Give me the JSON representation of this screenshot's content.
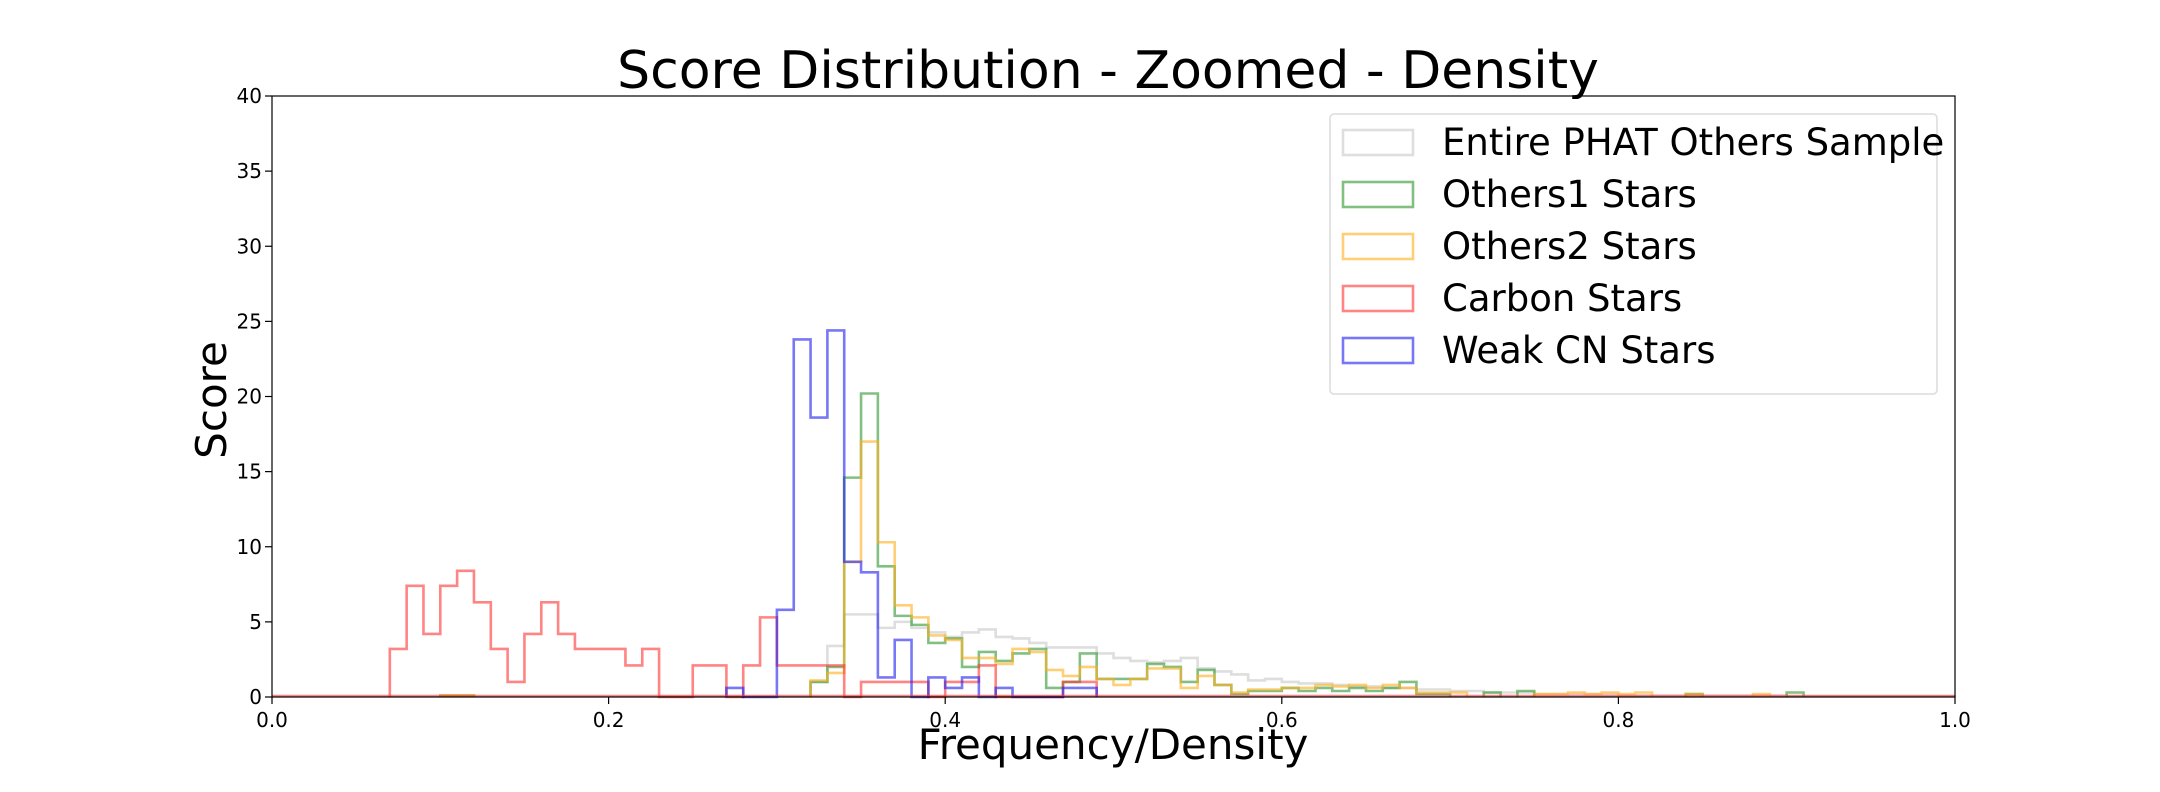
{
  "chart_data": {
    "type": "line",
    "title": "Score Distribution - Zoomed - Density",
    "xlabel": "Frequency/Density",
    "ylabel": "Score",
    "xlim": [
      0.0,
      1.0
    ],
    "ylim": [
      0,
      40
    ],
    "xticks": [
      0.0,
      0.2,
      0.4,
      0.6,
      0.8,
      1.0
    ],
    "xtick_labels": [
      "0.0",
      "0.2",
      "0.4",
      "0.6",
      "0.8",
      "1.0"
    ],
    "yticks": [
      0,
      5,
      10,
      15,
      20,
      25,
      30,
      35,
      40
    ],
    "ytick_labels": [
      "0",
      "5",
      "10",
      "15",
      "20",
      "25",
      "30",
      "35",
      "40"
    ],
    "grid": false,
    "legend_position": "top-right",
    "histtype": "step",
    "bin_width": 0.01,
    "series": [
      {
        "name": "Entire PHAT Others Sample",
        "color": "#c8c8c8",
        "bins": [
          [
            0.32,
            0.33,
            1.0
          ],
          [
            0.33,
            0.34,
            3.4
          ],
          [
            0.34,
            0.35,
            5.5
          ],
          [
            0.35,
            0.36,
            5.5
          ],
          [
            0.36,
            0.37,
            4.6
          ],
          [
            0.37,
            0.38,
            5.0
          ],
          [
            0.38,
            0.39,
            4.6
          ],
          [
            0.39,
            0.4,
            4.3
          ],
          [
            0.4,
            0.41,
            4.0
          ],
          [
            0.41,
            0.42,
            4.3
          ],
          [
            0.42,
            0.43,
            4.5
          ],
          [
            0.43,
            0.44,
            4.0
          ],
          [
            0.44,
            0.45,
            3.9
          ],
          [
            0.45,
            0.46,
            3.6
          ],
          [
            0.46,
            0.47,
            3.3
          ],
          [
            0.47,
            0.48,
            3.3
          ],
          [
            0.48,
            0.49,
            3.3
          ],
          [
            0.49,
            0.5,
            2.9
          ],
          [
            0.5,
            0.51,
            2.6
          ],
          [
            0.51,
            0.52,
            2.4
          ],
          [
            0.52,
            0.53,
            2.3
          ],
          [
            0.53,
            0.54,
            2.4
          ],
          [
            0.54,
            0.55,
            2.6
          ],
          [
            0.55,
            0.56,
            1.9
          ],
          [
            0.56,
            0.57,
            1.7
          ],
          [
            0.57,
            0.58,
            1.5
          ],
          [
            0.58,
            0.59,
            1.1
          ],
          [
            0.59,
            0.6,
            1.2
          ],
          [
            0.6,
            0.61,
            1.0
          ],
          [
            0.61,
            0.62,
            0.9
          ],
          [
            0.62,
            0.63,
            0.9
          ],
          [
            0.63,
            0.64,
            0.8
          ],
          [
            0.64,
            0.65,
            0.7
          ],
          [
            0.65,
            0.66,
            0.7
          ],
          [
            0.66,
            0.67,
            0.6
          ],
          [
            0.67,
            0.68,
            0.6
          ],
          [
            0.68,
            0.69,
            0.5
          ],
          [
            0.69,
            0.7,
            0.5
          ],
          [
            0.7,
            0.71,
            0.4
          ],
          [
            0.71,
            0.72,
            0.4
          ],
          [
            0.72,
            0.73,
            0.3
          ],
          [
            0.73,
            0.74,
            0.3
          ],
          [
            0.74,
            0.75,
            0.3
          ],
          [
            0.75,
            0.76,
            0.2
          ],
          [
            0.76,
            0.77,
            0.2
          ],
          [
            0.77,
            0.78,
            0.2
          ],
          [
            0.78,
            0.79,
            0.2
          ],
          [
            0.79,
            0.8,
            0.2
          ],
          [
            0.8,
            0.82,
            0.1
          ],
          [
            0.82,
            0.85,
            0.1
          ],
          [
            0.85,
            0.9,
            0.1
          ],
          [
            0.9,
            1.0,
            0.05
          ]
        ]
      },
      {
        "name": "Others1 Stars",
        "color": "#2e962e",
        "bins": [
          [
            0.1,
            0.12,
            0.1
          ],
          [
            0.32,
            0.33,
            1.0
          ],
          [
            0.33,
            0.34,
            2.0
          ],
          [
            0.34,
            0.35,
            14.6
          ],
          [
            0.35,
            0.36,
            20.2
          ],
          [
            0.36,
            0.37,
            8.7
          ],
          [
            0.37,
            0.38,
            5.4
          ],
          [
            0.38,
            0.39,
            4.8
          ],
          [
            0.39,
            0.4,
            3.6
          ],
          [
            0.4,
            0.41,
            3.9
          ],
          [
            0.41,
            0.42,
            2.0
          ],
          [
            0.42,
            0.43,
            3.0
          ],
          [
            0.43,
            0.44,
            2.4
          ],
          [
            0.44,
            0.45,
            2.9
          ],
          [
            0.45,
            0.46,
            3.2
          ],
          [
            0.46,
            0.47,
            0.6
          ],
          [
            0.47,
            0.48,
            1.0
          ],
          [
            0.48,
            0.49,
            2.9
          ],
          [
            0.49,
            0.5,
            1.2
          ],
          [
            0.5,
            0.51,
            1.2
          ],
          [
            0.51,
            0.52,
            1.2
          ],
          [
            0.52,
            0.53,
            2.2
          ],
          [
            0.53,
            0.54,
            2.0
          ],
          [
            0.54,
            0.55,
            1.0
          ],
          [
            0.55,
            0.56,
            1.8
          ],
          [
            0.56,
            0.57,
            0.8
          ],
          [
            0.57,
            0.58,
            0.2
          ],
          [
            0.58,
            0.59,
            0.4
          ],
          [
            0.59,
            0.6,
            0.4
          ],
          [
            0.6,
            0.61,
            0.6
          ],
          [
            0.61,
            0.62,
            0.4
          ],
          [
            0.62,
            0.63,
            0.6
          ],
          [
            0.63,
            0.64,
            0.4
          ],
          [
            0.64,
            0.65,
            0.6
          ],
          [
            0.65,
            0.66,
            0.4
          ],
          [
            0.66,
            0.67,
            0.6
          ],
          [
            0.67,
            0.68,
            1.0
          ],
          [
            0.68,
            0.69,
            0.2
          ],
          [
            0.69,
            0.7,
            0.2
          ],
          [
            0.72,
            0.73,
            0.3
          ],
          [
            0.74,
            0.75,
            0.4
          ],
          [
            0.84,
            0.85,
            0.2
          ],
          [
            0.9,
            0.91,
            0.3
          ]
        ]
      },
      {
        "name": "Others2 Stars",
        "color": "#ffaf1e",
        "bins": [
          [
            0.1,
            0.12,
            0.1
          ],
          [
            0.32,
            0.33,
            1.1
          ],
          [
            0.33,
            0.34,
            1.6
          ],
          [
            0.34,
            0.35,
            9.0
          ],
          [
            0.35,
            0.36,
            17.0
          ],
          [
            0.36,
            0.37,
            10.3
          ],
          [
            0.37,
            0.38,
            6.1
          ],
          [
            0.38,
            0.39,
            5.3
          ],
          [
            0.39,
            0.4,
            4.1
          ],
          [
            0.4,
            0.41,
            3.8
          ],
          [
            0.41,
            0.42,
            2.6
          ],
          [
            0.42,
            0.43,
            2.6
          ],
          [
            0.43,
            0.44,
            2.2
          ],
          [
            0.44,
            0.45,
            3.2
          ],
          [
            0.45,
            0.46,
            3.0
          ],
          [
            0.46,
            0.47,
            1.8
          ],
          [
            0.47,
            0.48,
            1.4
          ],
          [
            0.48,
            0.49,
            2.0
          ],
          [
            0.49,
            0.5,
            1.2
          ],
          [
            0.5,
            0.51,
            0.8
          ],
          [
            0.51,
            0.52,
            1.2
          ],
          [
            0.52,
            0.53,
            1.9
          ],
          [
            0.53,
            0.54,
            1.9
          ],
          [
            0.54,
            0.55,
            0.6
          ],
          [
            0.55,
            0.56,
            1.4
          ],
          [
            0.56,
            0.57,
            0.8
          ],
          [
            0.57,
            0.58,
            0.3
          ],
          [
            0.58,
            0.59,
            0.5
          ],
          [
            0.59,
            0.6,
            0.5
          ],
          [
            0.6,
            0.61,
            0.6
          ],
          [
            0.61,
            0.62,
            0.6
          ],
          [
            0.62,
            0.63,
            0.8
          ],
          [
            0.63,
            0.64,
            0.7
          ],
          [
            0.64,
            0.65,
            0.8
          ],
          [
            0.65,
            0.66,
            0.6
          ],
          [
            0.66,
            0.67,
            0.8
          ],
          [
            0.67,
            0.68,
            0.6
          ],
          [
            0.68,
            0.69,
            0.3
          ],
          [
            0.69,
            0.7,
            0.3
          ],
          [
            0.7,
            0.71,
            0.3
          ],
          [
            0.75,
            0.76,
            0.2
          ],
          [
            0.76,
            0.77,
            0.2
          ],
          [
            0.77,
            0.78,
            0.3
          ],
          [
            0.78,
            0.79,
            0.2
          ],
          [
            0.79,
            0.8,
            0.3
          ],
          [
            0.8,
            0.81,
            0.2
          ],
          [
            0.81,
            0.82,
            0.3
          ],
          [
            0.84,
            0.85,
            0.2
          ],
          [
            0.88,
            0.89,
            0.2
          ]
        ]
      },
      {
        "name": "Carbon Stars",
        "color": "#ff3232",
        "bins": [
          [
            0.07,
            0.08,
            3.2
          ],
          [
            0.08,
            0.09,
            7.4
          ],
          [
            0.09,
            0.1,
            4.2
          ],
          [
            0.1,
            0.11,
            7.4
          ],
          [
            0.11,
            0.12,
            8.4
          ],
          [
            0.12,
            0.13,
            6.3
          ],
          [
            0.13,
            0.14,
            3.2
          ],
          [
            0.14,
            0.15,
            1.0
          ],
          [
            0.15,
            0.16,
            4.2
          ],
          [
            0.16,
            0.17,
            6.3
          ],
          [
            0.17,
            0.18,
            4.2
          ],
          [
            0.18,
            0.19,
            3.2
          ],
          [
            0.19,
            0.2,
            3.2
          ],
          [
            0.2,
            0.21,
            3.2
          ],
          [
            0.21,
            0.22,
            2.1
          ],
          [
            0.22,
            0.23,
            3.2
          ],
          [
            0.23,
            0.25,
            0.0
          ],
          [
            0.25,
            0.26,
            2.1
          ],
          [
            0.26,
            0.27,
            2.1
          ],
          [
            0.27,
            0.28,
            0.0
          ],
          [
            0.28,
            0.29,
            2.1
          ],
          [
            0.29,
            0.3,
            5.3
          ],
          [
            0.3,
            0.31,
            2.1
          ],
          [
            0.31,
            0.32,
            2.1
          ],
          [
            0.32,
            0.33,
            2.1
          ],
          [
            0.33,
            0.34,
            2.1
          ],
          [
            0.34,
            0.35,
            0.0
          ],
          [
            0.35,
            0.36,
            1.0
          ],
          [
            0.36,
            0.37,
            1.0
          ],
          [
            0.37,
            0.38,
            1.0
          ],
          [
            0.38,
            0.39,
            1.0
          ],
          [
            0.39,
            0.4,
            0.0
          ],
          [
            0.4,
            0.41,
            1.0
          ],
          [
            0.41,
            0.42,
            1.0
          ],
          [
            0.42,
            0.43,
            2.1
          ],
          [
            0.43,
            0.44,
            0.0
          ],
          [
            0.44,
            0.47,
            0.0
          ],
          [
            0.47,
            0.48,
            1.0
          ],
          [
            0.48,
            0.49,
            1.0
          ]
        ]
      },
      {
        "name": "Weak CN Stars",
        "color": "#1e1ef0",
        "bins": [
          [
            0.27,
            0.28,
            0.6
          ],
          [
            0.28,
            0.29,
            0.0
          ],
          [
            0.29,
            0.3,
            0.0
          ],
          [
            0.3,
            0.31,
            5.8
          ],
          [
            0.31,
            0.32,
            23.8
          ],
          [
            0.32,
            0.33,
            18.6
          ],
          [
            0.33,
            0.34,
            24.4
          ],
          [
            0.34,
            0.35,
            9.0
          ],
          [
            0.35,
            0.36,
            8.3
          ],
          [
            0.36,
            0.37,
            1.3
          ],
          [
            0.37,
            0.38,
            3.8
          ],
          [
            0.38,
            0.39,
            0.0
          ],
          [
            0.39,
            0.4,
            1.3
          ],
          [
            0.4,
            0.41,
            0.6
          ],
          [
            0.41,
            0.42,
            1.3
          ],
          [
            0.42,
            0.43,
            0.0
          ],
          [
            0.43,
            0.44,
            0.6
          ],
          [
            0.44,
            0.47,
            0.0
          ],
          [
            0.47,
            0.48,
            0.6
          ],
          [
            0.48,
            0.49,
            0.6
          ]
        ]
      }
    ]
  }
}
